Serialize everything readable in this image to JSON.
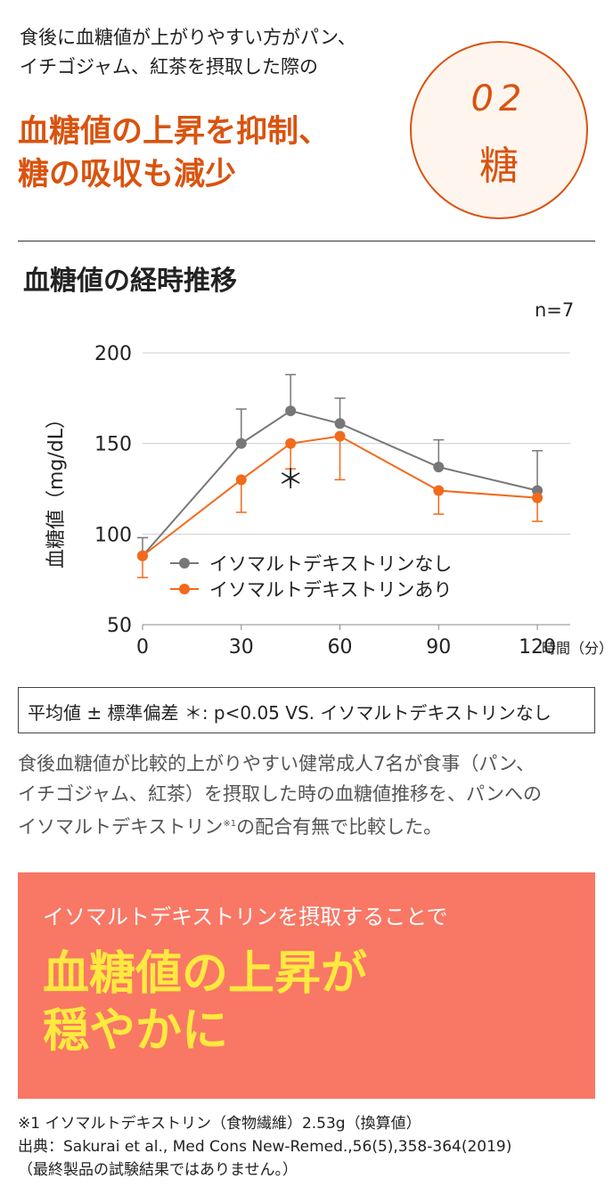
{
  "intro": {
    "line1": "食後に血糖値が上がりやすい方がパン、",
    "line2": "イチゴジャム、紅茶を摂取した際の"
  },
  "headline": {
    "line1": "血糖値の上昇を抑制、",
    "line2": "糖の吸収も減少"
  },
  "badge": {
    "number": "02",
    "label": "糖"
  },
  "chart_title": "血糖値の経時推移",
  "n_label": "n=7",
  "chart_data": {
    "type": "line",
    "ylabel": "血糖値（mg/dL）",
    "xlabel": "時間（分）",
    "ylim": [
      50,
      200
    ],
    "xlim": [
      0,
      130
    ],
    "yticks": [
      50,
      100,
      150,
      200
    ],
    "xticks": [
      0,
      30,
      60,
      90,
      120
    ],
    "grid": true,
    "legend_position": "center-left",
    "x": [
      0,
      30,
      45,
      60,
      90,
      120
    ],
    "series": [
      {
        "name": "イソマルトデキストリンなし",
        "color": "#777777",
        "values": [
          88,
          150,
          168,
          161,
          137,
          124
        ],
        "err_high": [
          98,
          169,
          188,
          175,
          152,
          146
        ],
        "err_low": [
          null,
          null,
          null,
          null,
          null,
          null
        ]
      },
      {
        "name": "イソマルトデキストリンあり",
        "color": "#f26a1b",
        "values": [
          88,
          130,
          150,
          154,
          124,
          120
        ],
        "err_high": [
          null,
          null,
          null,
          null,
          null,
          null
        ],
        "err_low": [
          76,
          112,
          136,
          130,
          111,
          107
        ]
      }
    ],
    "annotations": [
      {
        "x": 45,
        "y": 140,
        "text": "＊"
      }
    ]
  },
  "legend_note": "平均値 ± 標準偏差  ＊: p<0.05 VS. イソマルトデキストリンなし",
  "description": {
    "line1": "食後血糖値が比較的上がりやすい健常成人7名が食事（パン、",
    "line2": "イチゴジャム、紅茶）を摂取した時の血糖値推移を、パンへの",
    "line3_a": "イソマルトデキストリン",
    "line3_sup": "※1",
    "line3_b": "の配合有無で比較した。"
  },
  "callout": {
    "sub": "イソマルトデキストリンを摂取することで",
    "main1": "血糖値の上昇が",
    "main2": "穏やかに"
  },
  "footnote": {
    "line1": "※1 イソマルトデキストリン（食物繊維）2.53g（換算値）",
    "line2": "出典：Sakurai et al., Med Cons New-Remed.,56(5),358-364(2019)",
    "line3": "（最終製品の試験結果ではありません。）"
  }
}
